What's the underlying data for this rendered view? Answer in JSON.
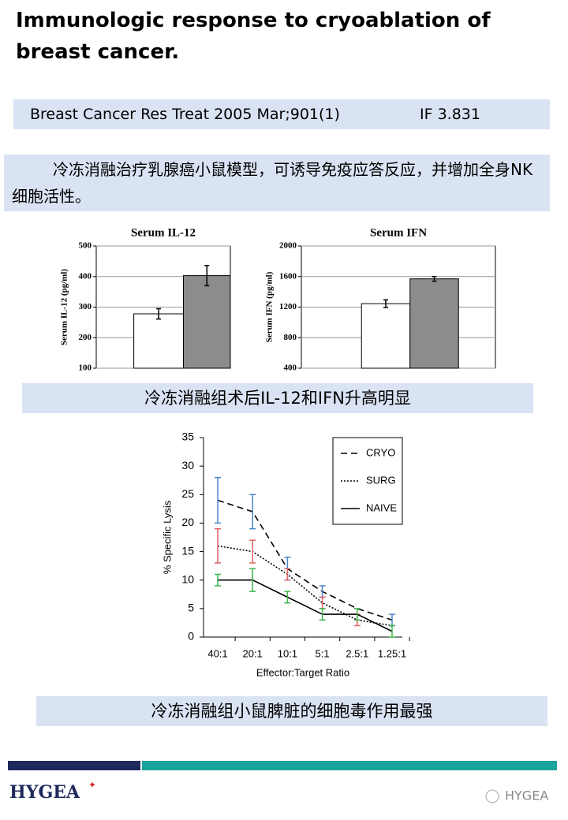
{
  "header": {
    "title": "Immunologic response to cryoablation of breast cancer."
  },
  "citation": {
    "journal": "Breast Cancer Res Treat 2005 Mar;901(1)",
    "impact": "IF 3.831"
  },
  "summary": "冷冻消融治疗乳腺癌小鼠模型，可诱导免疫应答反应，并增加全身NK细胞活性。",
  "captions": [
    "冷冻消融组术后IL-12和IFN升高明显",
    "冷冻消融组小鼠脾脏的细胞毒作用最强"
  ],
  "chart_data": [
    {
      "type": "bar",
      "title": "Serum IL-12",
      "y_label": "Serum IL-12 (pg/ml)",
      "categories": [
        null,
        null
      ],
      "values": [
        278,
        403
      ],
      "errors": [
        17,
        33
      ],
      "colors": [
        "#ffffff",
        "#8c8c8c"
      ],
      "ylim": [
        100,
        500
      ],
      "yticks": [
        100,
        200,
        300,
        400,
        500
      ],
      "grid": true
    },
    {
      "type": "bar",
      "title": "Serum IFN",
      "y_label": "Serum IFN (pg/ml)",
      "categories": [
        null,
        null
      ],
      "values": [
        1245,
        1570
      ],
      "errors": [
        50,
        30
      ],
      "colors": [
        "#ffffff",
        "#8c8c8c"
      ],
      "ylim": [
        400,
        2000
      ],
      "yticks": [
        400,
        800,
        1200,
        1600,
        2000
      ],
      "grid": true
    },
    {
      "type": "line",
      "x_label": "Effector:Target Ratio",
      "y_label": "% Specific Lysis",
      "categories": [
        "40:1",
        "20:1",
        "10:1",
        "5:1",
        "2.5:1",
        "1.25:1"
      ],
      "series": [
        {
          "name": "CRYO",
          "color": "#000000",
          "style": "dashed",
          "error_color": "#4a86c8",
          "values": [
            24,
            22,
            12,
            8,
            5,
            3
          ],
          "errors": [
            4,
            3,
            2,
            1,
            null,
            1
          ]
        },
        {
          "name": "SURG",
          "color": "#000000",
          "style": "dotted",
          "error_color": "#e06464",
          "values": [
            16,
            15,
            11,
            6,
            3,
            2
          ],
          "errors": [
            3,
            2,
            1,
            1,
            1,
            null
          ]
        },
        {
          "name": "NAIVE",
          "color": "#000000",
          "style": "solid",
          "error_color": "#3cb44b",
          "values": [
            10,
            10,
            7,
            4,
            4,
            1
          ],
          "errors": [
            1,
            2,
            1,
            1,
            1,
            1
          ]
        }
      ],
      "ylim": [
        0,
        35
      ],
      "yticks": [
        0,
        5,
        10,
        15,
        20,
        25,
        30,
        35
      ],
      "legend": "upper right"
    }
  ],
  "footer": {
    "logo": "HYGEA",
    "watermark": "HYGEA"
  }
}
